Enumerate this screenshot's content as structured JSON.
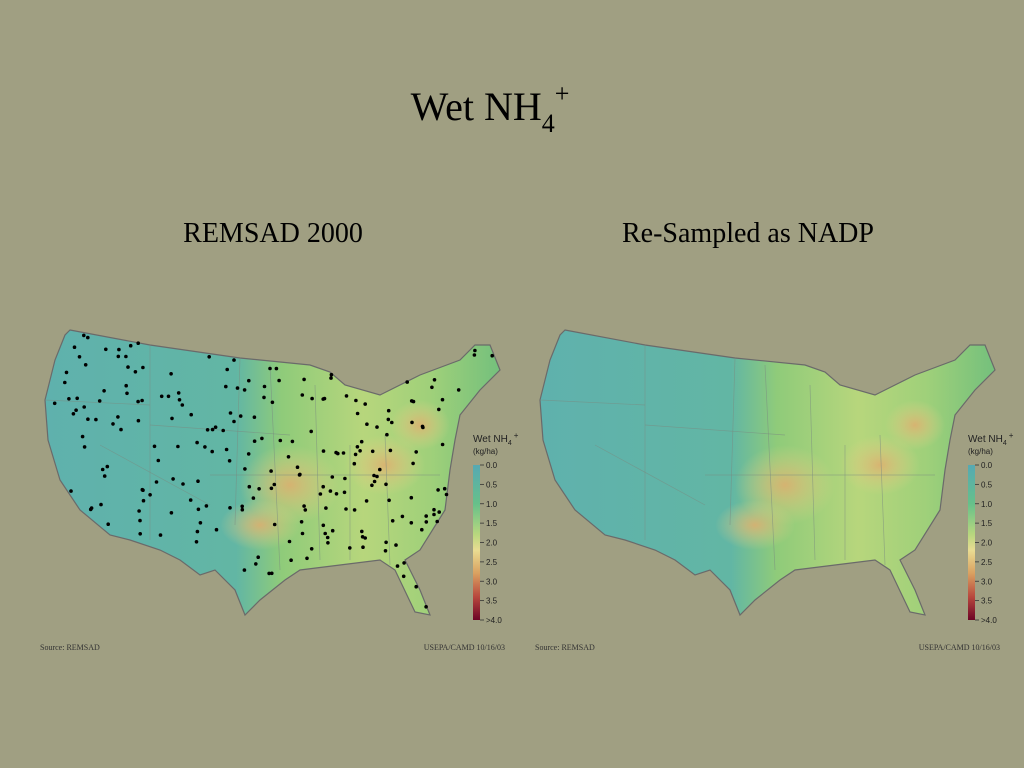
{
  "title": {
    "text": "Wet NH",
    "subscript": "4",
    "superscript": "+"
  },
  "maps": [
    {
      "subtitle": "REMSAD 2000",
      "legend": {
        "title": "Wet NH",
        "subscript": "4",
        "superscript": "+",
        "units": "(kg/ha)",
        "ticks": [
          {
            "value": 0,
            "label": "0.0"
          },
          {
            "value": 0.5,
            "label": "0.5"
          },
          {
            "value": 1,
            "label": "1.0"
          },
          {
            "value": 1.5,
            "label": "1.5"
          },
          {
            "value": 2,
            "label": "2.0"
          },
          {
            "value": 2.5,
            "label": "2.5"
          },
          {
            "value": 3,
            "label": "3.0"
          },
          {
            "value": 3.5,
            "label": "3.5"
          },
          {
            "value": 4,
            "label": ">4.0"
          }
        ]
      },
      "source": "Source: REMSAD",
      "credit": "USEPA/CAMD 10/16/03"
    },
    {
      "subtitle": "Re-Sampled as NADP",
      "legend": {
        "title": "Wet NH",
        "subscript": "4",
        "superscript": "+",
        "units": "(kg/ha)",
        "ticks": [
          {
            "value": 0,
            "label": "0.0"
          },
          {
            "value": 0.5,
            "label": "0.5"
          },
          {
            "value": 1,
            "label": "1.0"
          },
          {
            "value": 1.5,
            "label": "1.5"
          },
          {
            "value": 2,
            "label": "2.0"
          },
          {
            "value": 2.5,
            "label": "2.5"
          },
          {
            "value": 3,
            "label": "3.0"
          },
          {
            "value": 3.5,
            "label": "3.5"
          },
          {
            "value": 4,
            "label": ">4.0"
          }
        ]
      },
      "source": "Source: REMSAD",
      "credit": "USEPA/CAMD 10/16/03"
    }
  ]
}
